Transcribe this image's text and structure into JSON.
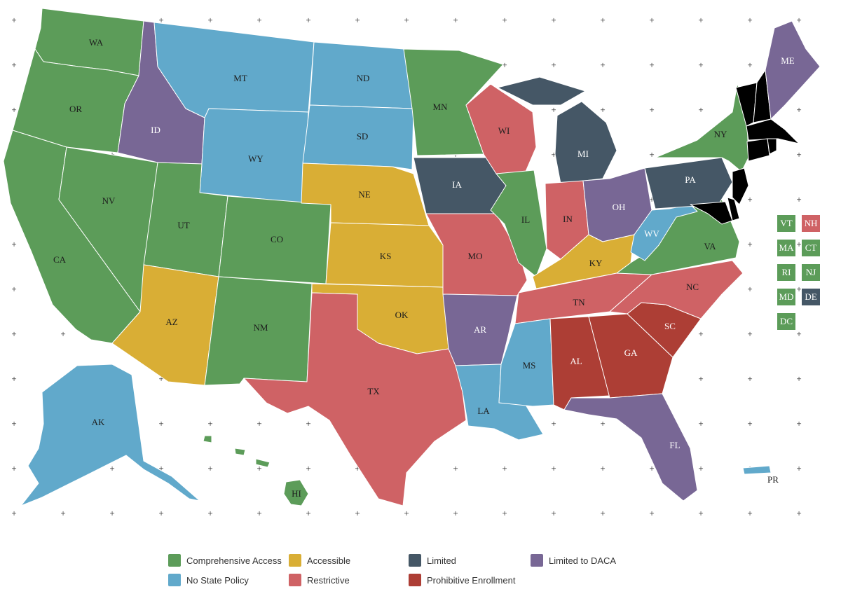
{
  "colors": {
    "comprehensive": "#5c9c59",
    "accessible": "#d9ae35",
    "limited": "#455766",
    "daca": "#786795",
    "nopolicy": "#61a9cb",
    "restrictive": "#cf6265",
    "prohibitive": "#ad3e35"
  },
  "legend": [
    {
      "label": "Comprehensive Access",
      "category": "comprehensive"
    },
    {
      "label": "Accessible",
      "category": "accessible"
    },
    {
      "label": "Limited",
      "category": "limited"
    },
    {
      "label": "Limited to DACA",
      "category": "daca"
    },
    {
      "label": "No State Policy",
      "category": "nopolicy"
    },
    {
      "label": "Restrictive",
      "category": "restrictive"
    },
    {
      "label": "Prohibitive Enrollment",
      "category": "prohibitive"
    }
  ],
  "states": {
    "WA": "comprehensive",
    "OR": "comprehensive",
    "CA": "comprehensive",
    "NV": "comprehensive",
    "ID": "daca",
    "MT": "nopolicy",
    "WY": "nopolicy",
    "UT": "comprehensive",
    "AZ": "accessible",
    "CO": "comprehensive",
    "NM": "comprehensive",
    "ND": "nopolicy",
    "SD": "nopolicy",
    "NE": "accessible",
    "KS": "accessible",
    "OK": "accessible",
    "TX": "restrictive",
    "MN": "comprehensive",
    "IA": "limited",
    "MO": "restrictive",
    "AR": "daca",
    "LA": "nopolicy",
    "WI": "restrictive",
    "IL": "comprehensive",
    "MI": "limited",
    "IN": "restrictive",
    "OH": "daca",
    "KY": "accessible",
    "TN": "restrictive",
    "MS": "nopolicy",
    "AL": "prohibitive",
    "GA": "prohibitive",
    "FL": "daca",
    "SC": "prohibitive",
    "NC": "restrictive",
    "VA": "comprehensive",
    "WV": "nopolicy",
    "PA": "limited",
    "NY": "comprehensive",
    "ME": "daca",
    "AK": "nopolicy",
    "HI": "comprehensive",
    "PR": "nopolicy"
  },
  "small_states": [
    {
      "code": "VT",
      "category": "comprehensive"
    },
    {
      "code": "NH",
      "category": "restrictive"
    },
    {
      "code": "MA",
      "category": "comprehensive"
    },
    {
      "code": "CT",
      "category": "comprehensive"
    },
    {
      "code": "RI",
      "category": "comprehensive"
    },
    {
      "code": "NJ",
      "category": "comprehensive"
    },
    {
      "code": "MD",
      "category": "comprehensive"
    },
    {
      "code": "DE",
      "category": "limited"
    },
    {
      "code": "DC",
      "category": "comprehensive"
    }
  ]
}
